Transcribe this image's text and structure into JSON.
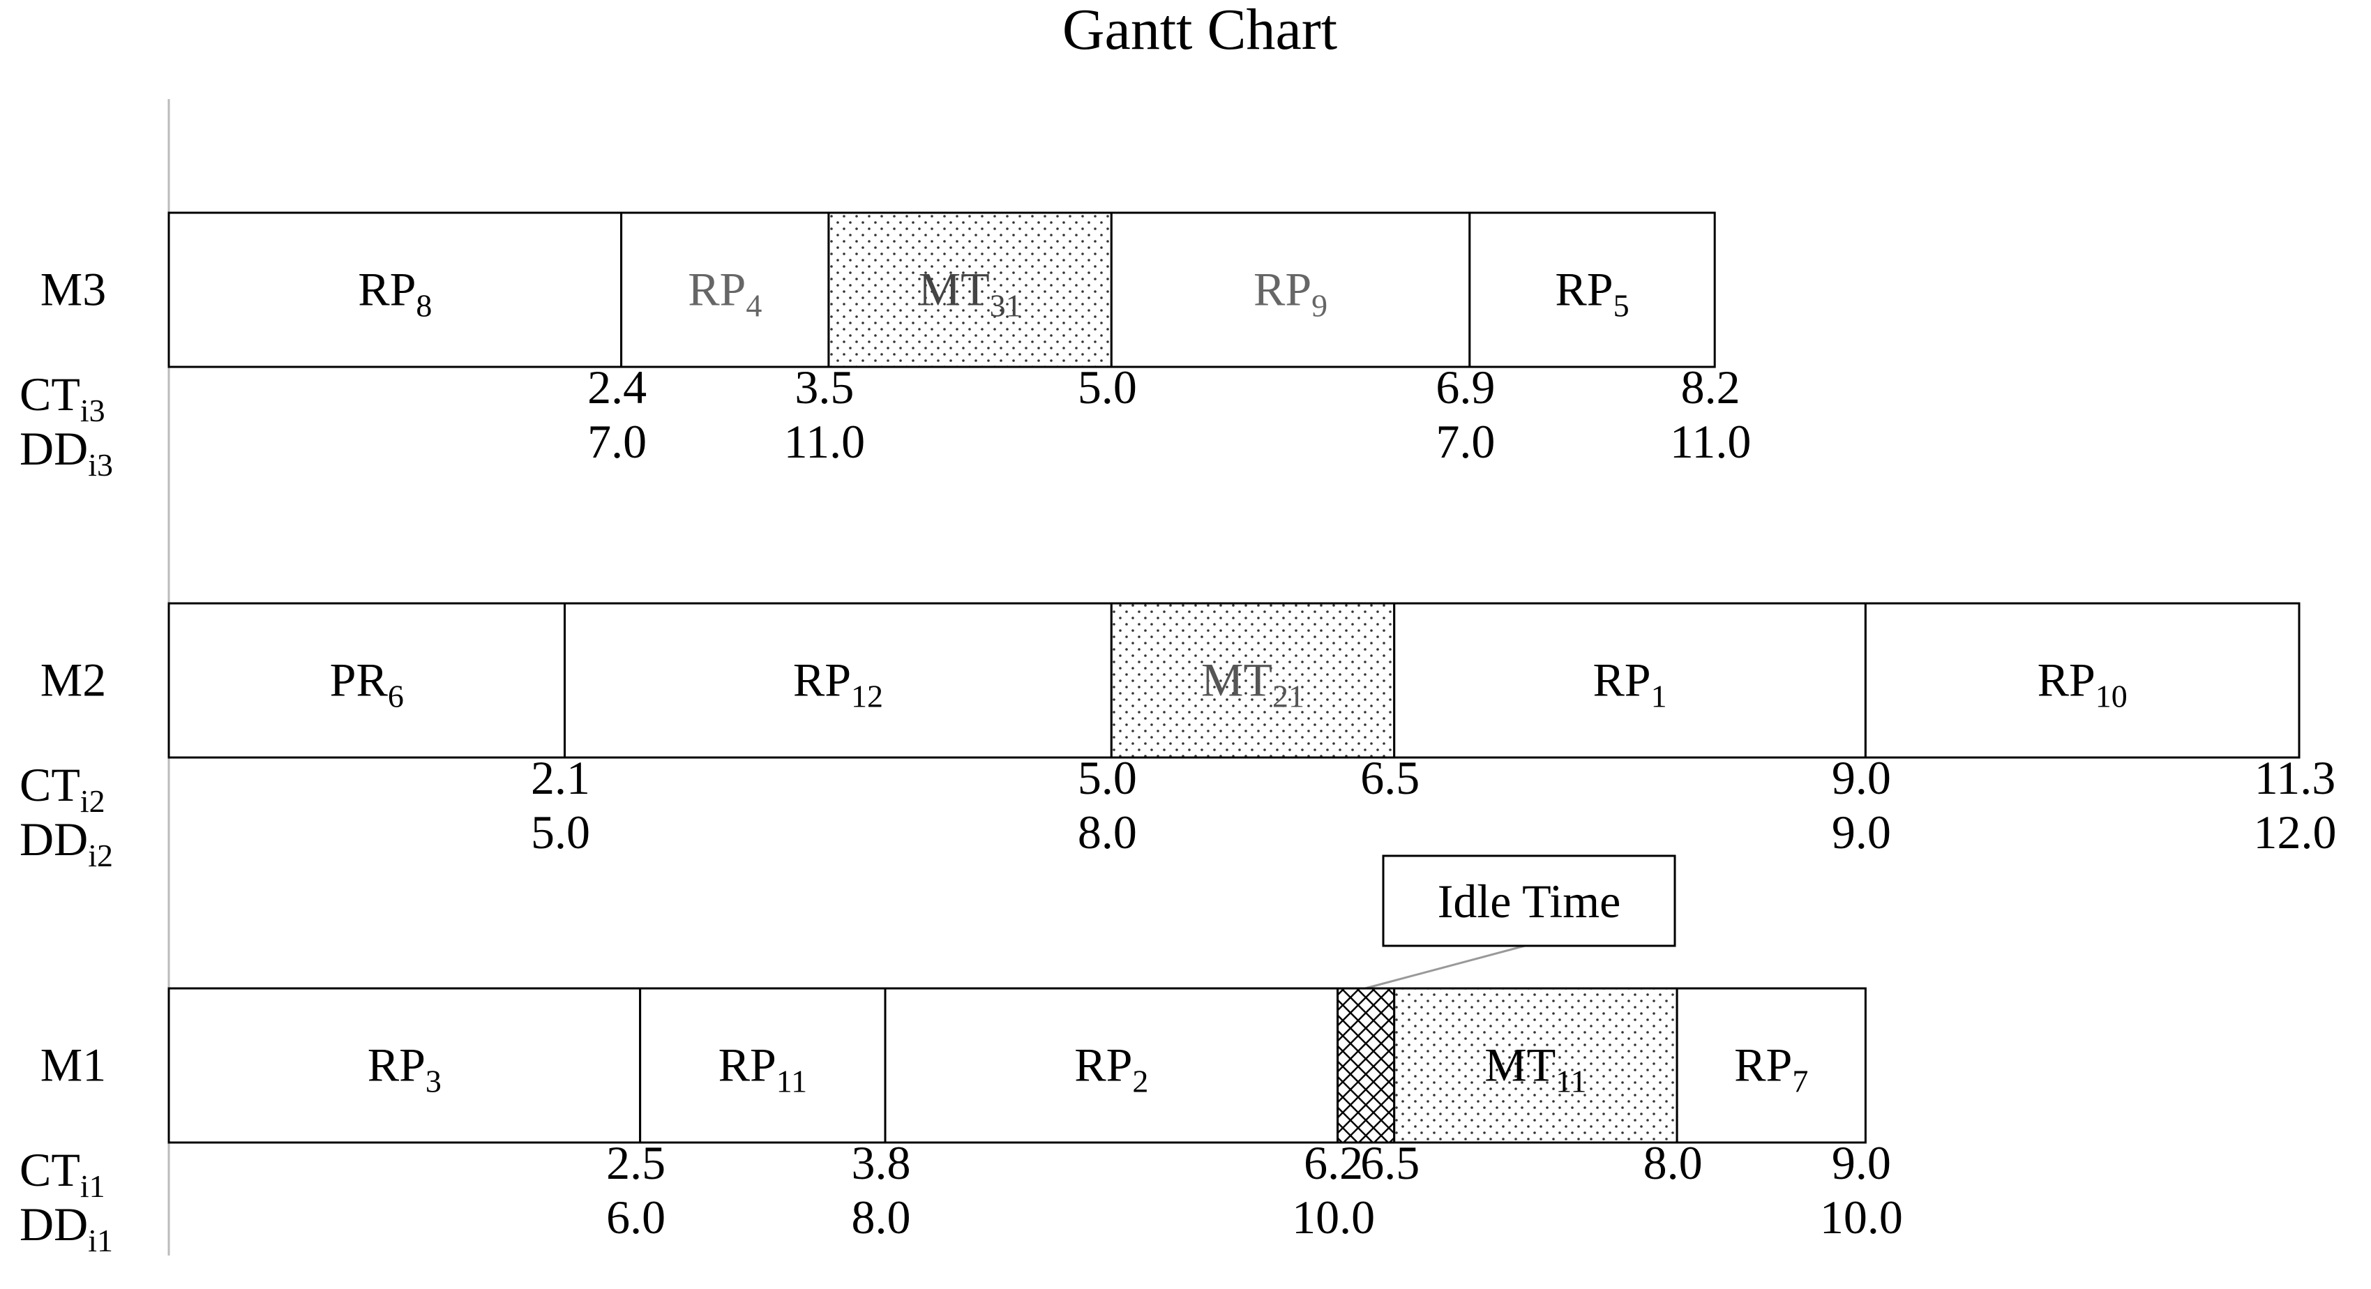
{
  "chart_data": {
    "type": "gantt",
    "title": "Gantt Chart",
    "xlim": [
      0,
      11.3
    ],
    "annotation": "Idle Time",
    "machines": [
      {
        "name": "M3",
        "ct": {
          "base": "CT",
          "sub": "i3"
        },
        "dd": {
          "base": "DD",
          "sub": "i3"
        },
        "tasks": [
          {
            "name": "RP",
            "sub": "8",
            "start": 0,
            "end": 2.4,
            "due": "7.0"
          },
          {
            "name": "RP",
            "sub": "4",
            "start": 2.4,
            "end": 3.5,
            "due": "11.0",
            "text_color": "#666666"
          },
          {
            "name": "MT",
            "sub": "31",
            "start": 3.5,
            "end": {
              "value": 5,
              "label": "5.0"
            },
            "fill": "dots",
            "text_color": "#444444"
          },
          {
            "name": "RP",
            "sub": "9",
            "start": 5,
            "end": 6.9,
            "due": "7.0",
            "text_color": "#666666"
          },
          {
            "name": "RP",
            "sub": "5",
            "start": 6.9,
            "end": 8.2,
            "due": "11.0"
          }
        ]
      },
      {
        "name": "M2",
        "ct": {
          "base": "CT",
          "sub": "i2"
        },
        "dd": {
          "base": "DD",
          "sub": "i2"
        },
        "tasks": [
          {
            "name": "PR",
            "sub": "6",
            "start": 0,
            "end": 2.1,
            "due": "5.0"
          },
          {
            "name": "RP",
            "sub": "12",
            "start": 2.1,
            "end": {
              "value": 5,
              "label": "5.0"
            },
            "due": "8.0"
          },
          {
            "name": "MT",
            "sub": "21",
            "start": 5,
            "end": 6.5,
            "fill": "dots",
            "text_color": "#555555"
          },
          {
            "name": "RP",
            "sub": "1",
            "start": 6.5,
            "end": {
              "value": 9,
              "label": "9.0"
            },
            "due": "9.0"
          },
          {
            "name": "RP",
            "sub": "10",
            "start": 9,
            "end": 11.3,
            "due": "12.0"
          }
        ]
      },
      {
        "name": "M1",
        "ct": {
          "base": "CT",
          "sub": "i1"
        },
        "dd": {
          "base": "DD",
          "sub": "i1"
        },
        "tasks": [
          {
            "name": "RP",
            "sub": "3",
            "start": 0,
            "end": 2.5,
            "due": "6.0"
          },
          {
            "name": "RP",
            "sub": "11",
            "start": 2.5,
            "end": 3.8,
            "due": "8.0"
          },
          {
            "name": "RP",
            "sub": "2",
            "start": 3.8,
            "end": 6.2,
            "due": "10.0"
          },
          {
            "start": 6.2,
            "end": 6.5,
            "fill": "crosshatch"
          },
          {
            "name": "MT",
            "sub": "11",
            "start": 6.5,
            "end": {
              "value": 8,
              "label": "8.0"
            },
            "fill": "dots"
          },
          {
            "name": "RP",
            "sub": "7",
            "start": 8,
            "end": {
              "value": 9,
              "label": "9.0"
            },
            "due": "10.0"
          }
        ]
      }
    ]
  }
}
